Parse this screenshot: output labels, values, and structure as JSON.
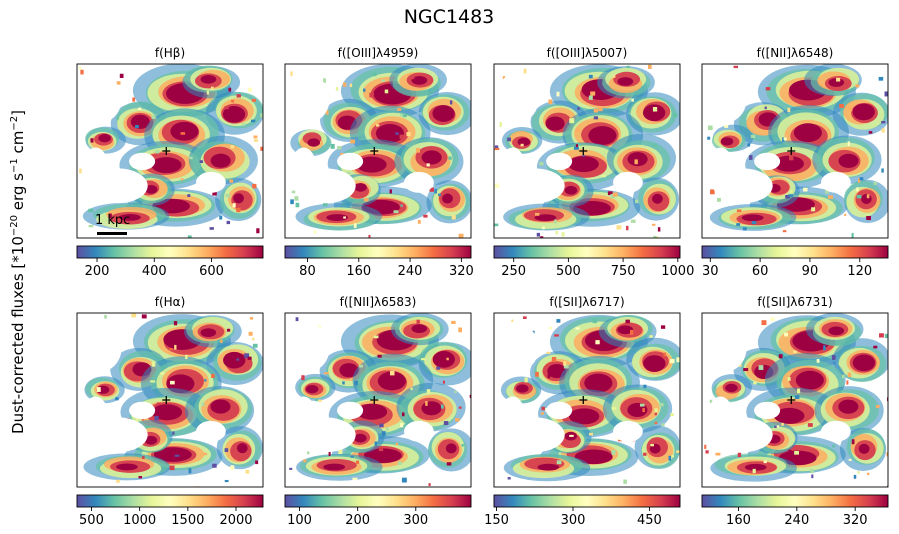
{
  "chart_data": {
    "type": "heatmap",
    "title": "NGC1483",
    "ylabel": "Dust-corrected fluxes [*10$^{-20}$ erg s$^{-1}$ cm$^{-2}$]",
    "ylabel_display": {
      "prefix": "Dust-corrected fluxes [*10",
      "exp1": "−20",
      "mid": " erg s",
      "exp2": "−1",
      "mid2": " cm",
      "exp3": "−2",
      "suffix": "]"
    },
    "colormap": "Spectral_r",
    "colormap_stops": [
      "#5e4fa2",
      "#3288bd",
      "#66c2a5",
      "#abdda4",
      "#e6f598",
      "#ffffbf",
      "#fee08b",
      "#fdae61",
      "#f46d43",
      "#d53e4f",
      "#9e0142"
    ],
    "scalebar": {
      "label": "1 kpc"
    },
    "panels": [
      {
        "title": "f(Hβ)",
        "cbar_range": [
          130,
          780
        ],
        "ticks": [
          200,
          400,
          600
        ]
      },
      {
        "title": "f([OIII]λ4959)",
        "cbar_range": [
          45,
          335
        ],
        "ticks": [
          80,
          160,
          240,
          320
        ]
      },
      {
        "title": "f([OIII]λ5007)",
        "cbar_range": [
          160,
          1010
        ],
        "ticks": [
          250,
          500,
          750,
          1000
        ]
      },
      {
        "title": "f([NII]λ6548)",
        "cbar_range": [
          25,
          137
        ],
        "ticks": [
          30,
          60,
          90,
          120
        ]
      },
      {
        "title": "f(Hα)",
        "cbar_range": [
          350,
          2280
        ],
        "ticks": [
          500,
          1000,
          1500,
          2000
        ]
      },
      {
        "title": "f([NII]λ6583)",
        "cbar_range": [
          75,
          395
        ],
        "ticks": [
          100,
          200,
          300
        ]
      },
      {
        "title": "f([SII]λ6717)",
        "cbar_range": [
          145,
          510
        ],
        "ticks": [
          150,
          300,
          450
        ]
      },
      {
        "title": "f([SII]λ6731)",
        "cbar_range": [
          110,
          365
        ],
        "ticks": [
          160,
          240,
          320
        ]
      }
    ]
  }
}
